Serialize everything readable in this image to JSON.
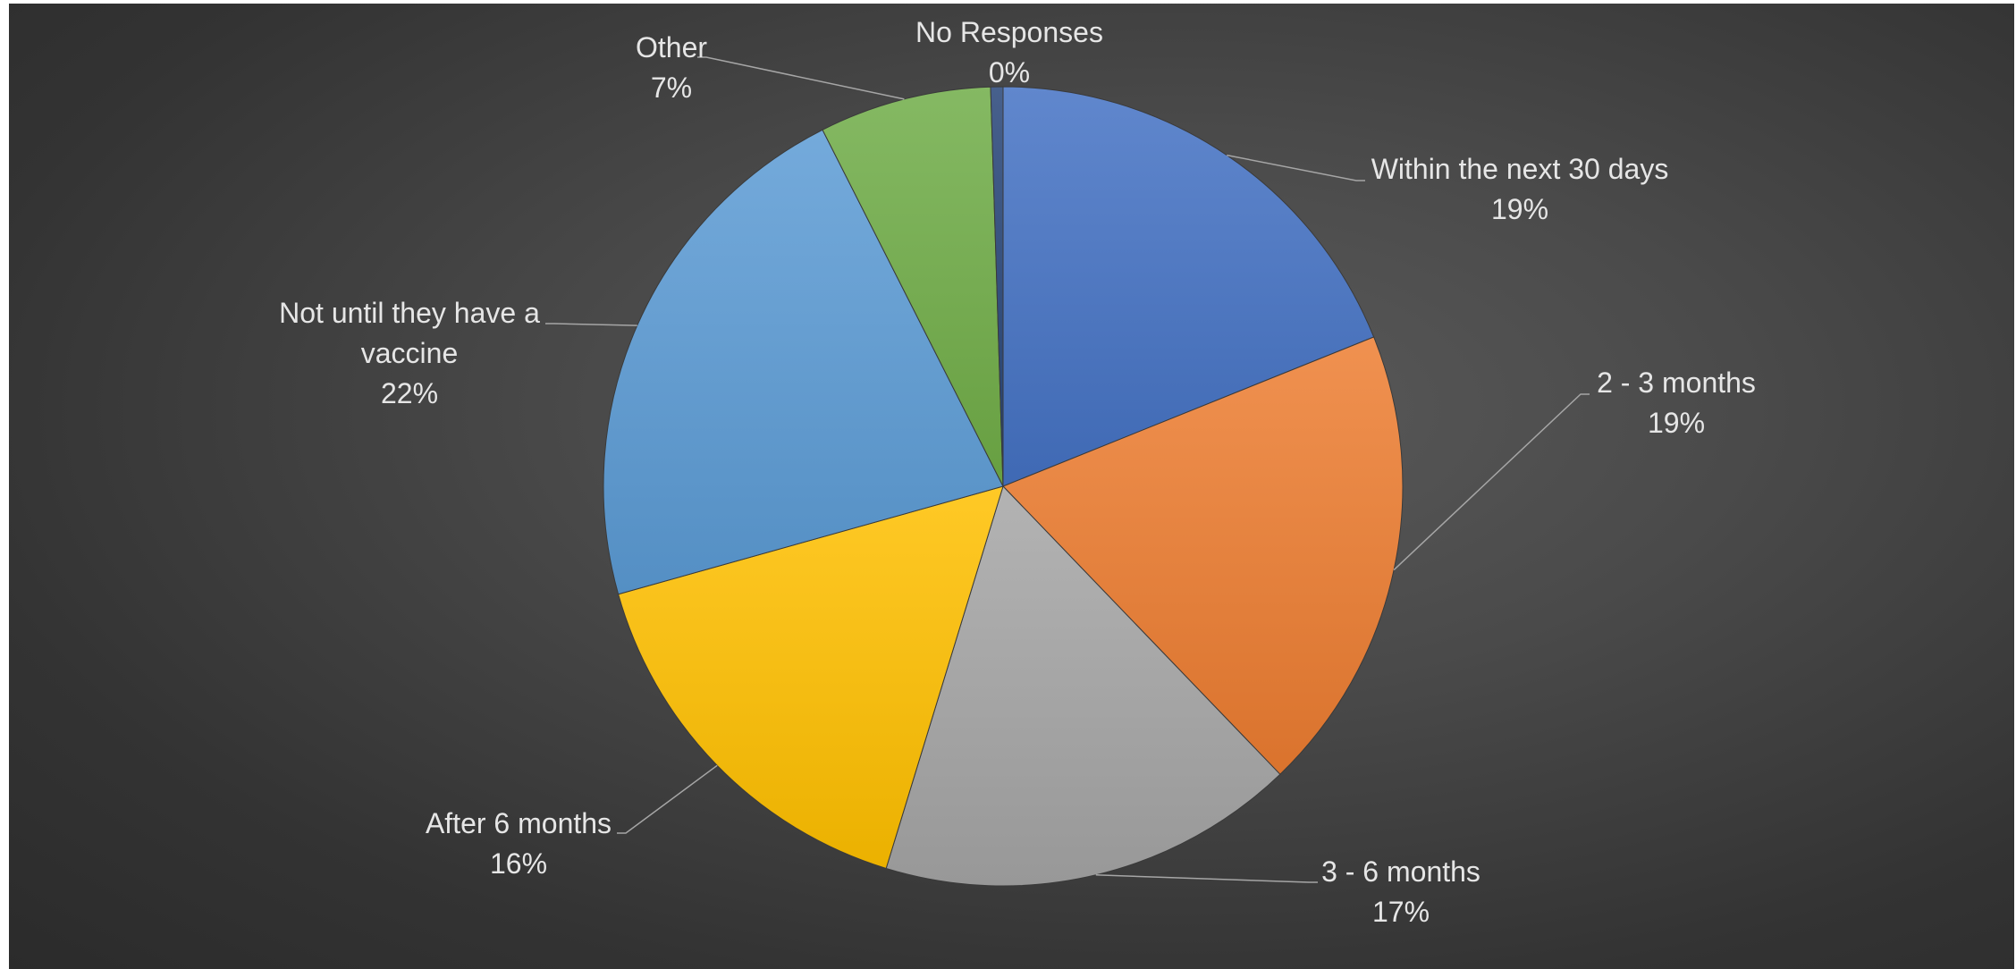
{
  "chart_data": {
    "type": "pie",
    "title": "",
    "slices": [
      {
        "name": "Within the next 30 days",
        "lines": [
          "Within the next 30 days"
        ],
        "value": 19,
        "pct_label": "19%",
        "color": "#4472c4"
      },
      {
        "name": "2 - 3 months",
        "lines": [
          "2 - 3 months"
        ],
        "value": 19,
        "pct_label": "19%",
        "color": "#ed7d31"
      },
      {
        "name": "3 - 6 months",
        "lines": [
          "3 - 6 months"
        ],
        "value": 17,
        "pct_label": "17%",
        "color": "#a5a5a5"
      },
      {
        "name": "After 6 months",
        "lines": [
          "After 6 months"
        ],
        "value": 16,
        "pct_label": "16%",
        "color": "#ffc000"
      },
      {
        "name": "Not until they have a vaccine",
        "lines": [
          "Not until they have a",
          "vaccine"
        ],
        "value": 22,
        "pct_label": "22%",
        "color": "#5b9bd5"
      },
      {
        "name": "Other",
        "lines": [
          "Other"
        ],
        "value": 7,
        "pct_label": "7%",
        "color": "#70ad47"
      },
      {
        "name": "No Responses",
        "lines": [
          "No Responses"
        ],
        "value": 0.5,
        "pct_label": "0%",
        "color": "#264478"
      }
    ],
    "legend": "none",
    "data_labels": "outside-with-leader-lines"
  }
}
